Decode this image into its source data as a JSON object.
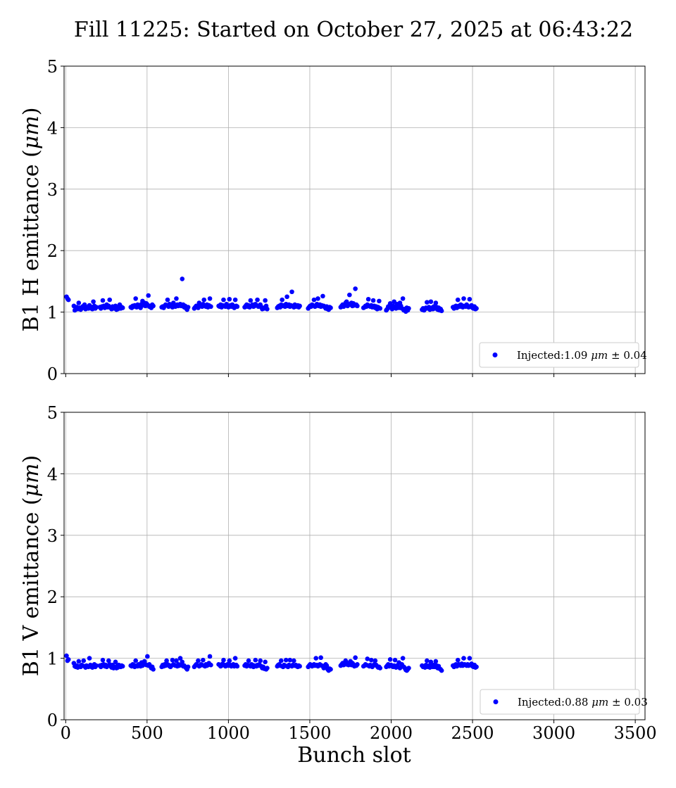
{
  "figure": {
    "title": "Fill 11225: Started on October 27, 2025 at 06:43:22",
    "xlabel": "Bunch slot"
  },
  "chart_data": [
    {
      "type": "scatter",
      "ylabel_main": "B1 H emittance (",
      "ylabel_unit": "μm",
      "ylabel_close": ")",
      "xlim": [
        -10,
        3560
      ],
      "ylim": [
        0,
        5
      ],
      "xticks": [
        0,
        500,
        1000,
        1500,
        2000,
        2500,
        3000,
        3500
      ],
      "xtick_labels_shown": false,
      "yticks": [
        0,
        1,
        2,
        3,
        4,
        5
      ],
      "grid": true,
      "legend_placement": "lower-right",
      "series": [
        {
          "name": "Injected:1.09 μm ± 0.04",
          "name_parts": {
            "prefix": "Injected:1.09 ",
            "unit": "μm",
            "suffix": " ± 0.04"
          },
          "color": "#0000ff",
          "trains": [
            {
              "x0": 5,
              "dx": 6,
              "values": [
                1.25,
                1.22,
                1.2
              ]
            },
            {
              "x0": 50,
              "dx": 6,
              "values": [
                1.1,
                1.03,
                1.06,
                1.08,
                1.05,
                1.15,
                1.07,
                1.04,
                1.06,
                1.09,
                1.1,
                1.12,
                1.05,
                1.08,
                1.07,
                1.06,
                1.11,
                1.09,
                1.06,
                1.05,
                1.17,
                1.1,
                1.06,
                1.08
              ]
            },
            {
              "x0": 210,
              "dx": 6,
              "values": [
                1.08,
                1.06,
                1.09,
                1.19,
                1.1,
                1.07,
                1.09,
                1.12,
                1.08,
                1.1,
                1.2,
                1.07,
                1.05,
                1.09,
                1.08,
                1.06,
                1.1,
                1.04,
                1.08
              ]
            },
            {
              "x0": 320,
              "dx": 6,
              "values": [
                1.05,
                1.09,
                1.12,
                1.06,
                1.08,
                1.07
              ]
            },
            {
              "x0": 400,
              "dx": 6,
              "values": [
                1.08,
                1.07,
                1.1,
                1.09,
                1.11,
                1.22,
                1.08,
                1.12,
                1.1,
                1.09,
                1.07,
                1.13,
                1.18,
                1.11,
                1.15,
                1.1,
                1.14,
                1.12,
                1.27,
                1.09,
                1.1,
                1.07,
                1.12,
                1.1
              ]
            },
            {
              "x0": 590,
              "dx": 6,
              "values": [
                1.08,
                1.09,
                1.07,
                1.1,
                1.12,
                1.11,
                1.2,
                1.09,
                1.13,
                1.1,
                1.12,
                1.08,
                1.15,
                1.1,
                1.09,
                1.22,
                1.12,
                1.1,
                1.11,
                1.13,
                1.1,
                1.54,
                1.12,
                1.08,
                1.1,
                1.06,
                1.04,
                1.08
              ]
            },
            {
              "x0": 790,
              "dx": 6,
              "values": [
                1.06,
                1.08,
                1.1,
                1.09,
                1.07,
                1.15,
                1.1,
                1.11,
                1.09,
                1.13,
                1.2,
                1.1,
                1.09,
                1.12,
                1.08,
                1.11,
                1.22,
                1.09
              ]
            },
            {
              "x0": 940,
              "dx": 6,
              "values": [
                1.1,
                1.09,
                1.12,
                1.08,
                1.11,
                1.2,
                1.1,
                1.09,
                1.13,
                1.1,
                1.08,
                1.21,
                1.11,
                1.09,
                1.12,
                1.1,
                1.07,
                1.2,
                1.1,
                1.09
              ]
            },
            {
              "x0": 1100,
              "dx": 6,
              "values": [
                1.08,
                1.1,
                1.12,
                1.09,
                1.11,
                1.08,
                1.19,
                1.1,
                1.12,
                1.09,
                1.1,
                1.13,
                1.11,
                1.2,
                1.09,
                1.1,
                1.12,
                1.08,
                1.05,
                1.07,
                1.06,
                1.19,
                1.1,
                1.05
              ]
            },
            {
              "x0": 1300,
              "dx": 6,
              "values": [
                1.07,
                1.09,
                1.1,
                1.08,
                1.12,
                1.2,
                1.1,
                1.11,
                1.09,
                1.13,
                1.25,
                1.1,
                1.12,
                1.09,
                1.11,
                1.33,
                1.1,
                1.08,
                1.12,
                1.09,
                1.1,
                1.11,
                1.08,
                1.1
              ]
            },
            {
              "x0": 1490,
              "dx": 6,
              "values": [
                1.06,
                1.08,
                1.1,
                1.09,
                1.12,
                1.11,
                1.2,
                1.09,
                1.1,
                1.13,
                1.22,
                1.1,
                1.12,
                1.09,
                1.11,
                1.26,
                1.1,
                1.08,
                1.06,
                1.09,
                1.05,
                1.04,
                1.08,
                1.07
              ]
            },
            {
              "x0": 1690,
              "dx": 6,
              "values": [
                1.08,
                1.1,
                1.12,
                1.09,
                1.11,
                1.15,
                1.17,
                1.1,
                1.13,
                1.28,
                1.12,
                1.15,
                1.1,
                1.14,
                1.11,
                1.38,
                1.12,
                1.1
              ]
            },
            {
              "x0": 1830,
              "dx": 6,
              "values": [
                1.07,
                1.08,
                1.1,
                1.09,
                1.12,
                1.21,
                1.1,
                1.09,
                1.11,
                1.08,
                1.19,
                1.1,
                1.07,
                1.09,
                1.05,
                1.08,
                1.18,
                1.06
              ]
            },
            {
              "x0": 1970,
              "dx": 6,
              "values": [
                1.03,
                1.05,
                1.09,
                1.08,
                1.14,
                1.07,
                1.05,
                1.1,
                1.17,
                1.09,
                1.06,
                1.13,
                1.08,
                1.07,
                1.15,
                1.1,
                1.06,
                1.22,
                1.03,
                1.05,
                1.01,
                1.07,
                1.03,
                1.06
              ]
            },
            {
              "x0": 2190,
              "dx": 6,
              "values": [
                1.04,
                1.06,
                1.03,
                1.05,
                1.07,
                1.16,
                1.06,
                1.08,
                1.04,
                1.17,
                1.07,
                1.05,
                1.09,
                1.06,
                1.15,
                1.08,
                1.04,
                1.07,
                1.03,
                1.05,
                1.02
              ]
            },
            {
              "x0": 2380,
              "dx": 6,
              "values": [
                1.08,
                1.06,
                1.09,
                1.1,
                1.07,
                1.2,
                1.1,
                1.09,
                1.12,
                1.11,
                1.08,
                1.22,
                1.1,
                1.09,
                1.12,
                1.1,
                1.08,
                1.21,
                1.09,
                1.11,
                1.07,
                1.06,
                1.09,
                1.05,
                1.06
              ]
            }
          ]
        }
      ]
    },
    {
      "type": "scatter",
      "ylabel_main": "B1 V emittance (",
      "ylabel_unit": "μm",
      "ylabel_close": ")",
      "xlim": [
        -10,
        3560
      ],
      "ylim": [
        0,
        5
      ],
      "xticks": [
        0,
        500,
        1000,
        1500,
        2000,
        2500,
        3000,
        3500
      ],
      "xtick_labels_shown": true,
      "yticks": [
        0,
        1,
        2,
        3,
        4,
        5
      ],
      "grid": true,
      "legend_placement": "lower-right",
      "series": [
        {
          "name": "Injected:0.88 μm ± 0.03",
          "name_parts": {
            "prefix": "Injected:0.88 ",
            "unit": "μm",
            "suffix": " ± 0.03"
          },
          "color": "#0000ff",
          "trains": [
            {
              "x0": 5,
              "dx": 6,
              "values": [
                1.04,
                0.96,
                0.98
              ]
            },
            {
              "x0": 50,
              "dx": 6,
              "values": [
                0.92,
                0.87,
                0.86,
                0.88,
                0.85,
                0.95,
                0.87,
                0.86,
                0.89,
                0.88,
                0.96,
                0.87,
                0.85,
                0.88,
                0.87,
                0.86,
                1.0,
                0.89,
                0.86,
                0.85,
                0.88,
                0.9,
                0.86,
                0.88
              ]
            },
            {
              "x0": 210,
              "dx": 6,
              "values": [
                0.88,
                0.86,
                0.89,
                0.97,
                0.9,
                0.87,
                0.89,
                0.86,
                0.88,
                0.96,
                0.9,
                0.87,
                0.85,
                0.89,
                0.84,
                0.86,
                0.94,
                0.84,
                0.88
              ]
            },
            {
              "x0": 320,
              "dx": 6,
              "values": [
                0.85,
                0.89,
                0.88,
                0.86,
                0.88,
                0.87
              ]
            },
            {
              "x0": 400,
              "dx": 6,
              "values": [
                0.88,
                0.87,
                0.9,
                0.89,
                0.86,
                0.96,
                0.88,
                0.87,
                0.9,
                0.89,
                0.87,
                0.93,
                0.88,
                0.91,
                0.95,
                0.9,
                0.89,
                1.03,
                0.88,
                0.9,
                0.87,
                0.84,
                0.86,
                0.82
              ]
            },
            {
              "x0": 590,
              "dx": 6,
              "values": [
                0.86,
                0.89,
                0.87,
                0.9,
                0.88,
                0.96,
                0.9,
                0.89,
                0.87,
                0.86,
                0.88,
                0.97,
                0.9,
                0.89,
                0.88,
                0.96,
                0.87,
                0.9,
                0.88,
                1.0,
                0.89,
                0.94,
                0.87,
                0.88,
                0.86,
                0.84,
                0.82,
                0.86
              ]
            },
            {
              "x0": 790,
              "dx": 6,
              "values": [
                0.86,
                0.88,
                0.9,
                0.89,
                0.96,
                0.87,
                0.88,
                0.9,
                0.89,
                0.97,
                0.88,
                0.87,
                0.9,
                0.88,
                0.89,
                0.92,
                1.03,
                0.89
              ]
            },
            {
              "x0": 940,
              "dx": 6,
              "values": [
                0.9,
                0.89,
                0.87,
                0.88,
                0.91,
                0.97,
                0.89,
                0.87,
                0.88,
                0.9,
                0.88,
                0.96,
                0.89,
                0.87,
                0.88,
                0.9,
                0.87,
                1.0,
                0.89,
                0.87
              ]
            },
            {
              "x0": 1100,
              "dx": 6,
              "values": [
                0.88,
                0.9,
                0.87,
                0.89,
                0.96,
                0.88,
                0.87,
                0.9,
                0.89,
                0.86,
                0.88,
                0.97,
                0.87,
                0.89,
                0.88,
                0.9,
                0.96,
                0.87,
                0.84,
                0.86,
                0.83,
                0.94,
                0.82,
                0.84
              ]
            },
            {
              "x0": 1300,
              "dx": 6,
              "values": [
                0.87,
                0.89,
                0.9,
                0.88,
                0.96,
                0.87,
                0.86,
                0.89,
                0.88,
                0.97,
                0.87,
                0.86,
                0.89,
                0.97,
                0.88,
                0.87,
                0.89,
                0.96,
                0.88,
                0.89,
                0.87,
                0.86,
                0.88,
                0.87
              ]
            },
            {
              "x0": 1490,
              "dx": 6,
              "values": [
                0.86,
                0.88,
                0.9,
                0.89,
                0.87,
                0.88,
                0.9,
                0.88,
                1.0,
                0.89,
                0.87,
                0.88,
                0.9,
                1.01,
                0.88,
                0.87,
                0.84,
                0.86,
                0.9,
                0.88,
                0.82,
                0.8,
                0.83,
                0.82
              ]
            },
            {
              "x0": 1690,
              "dx": 6,
              "values": [
                0.88,
                0.9,
                0.92,
                0.89,
                0.91,
                0.96,
                0.9,
                0.92,
                0.89,
                0.91,
                0.95,
                0.89,
                0.92,
                0.9,
                0.87,
                1.01,
                0.88,
                0.9
              ]
            },
            {
              "x0": 1830,
              "dx": 6,
              "values": [
                0.87,
                0.88,
                0.9,
                0.89,
                0.99,
                0.88,
                0.87,
                0.89,
                0.97,
                0.86,
                0.88,
                0.9,
                0.96,
                0.89,
                0.87,
                0.85,
                0.86,
                0.84
              ]
            },
            {
              "x0": 1970,
              "dx": 6,
              "values": [
                0.86,
                0.88,
                0.9,
                0.87,
                0.98,
                0.89,
                0.87,
                0.86,
                0.88,
                0.97,
                0.85,
                0.88,
                0.86,
                0.93,
                0.84,
                0.86,
                0.9,
                1.0,
                0.86,
                0.84,
                0.81,
                0.8,
                0.82,
                0.84
              ]
            },
            {
              "x0": 2190,
              "dx": 6,
              "values": [
                0.88,
                0.86,
                0.87,
                0.85,
                0.89,
                0.96,
                0.86,
                0.88,
                0.85,
                0.94,
                0.87,
                0.86,
                0.89,
                0.86,
                0.95,
                0.88,
                0.84,
                0.87,
                0.83,
                0.82,
                0.8
              ]
            },
            {
              "x0": 2380,
              "dx": 6,
              "values": [
                0.88,
                0.86,
                0.89,
                0.9,
                0.87,
                0.97,
                0.9,
                0.89,
                0.88,
                0.91,
                0.88,
                1.0,
                0.9,
                0.89,
                0.88,
                0.9,
                0.88,
                1.0,
                0.89,
                0.91,
                0.87,
                0.86,
                0.89,
                0.85,
                0.86
              ]
            }
          ]
        }
      ]
    }
  ]
}
